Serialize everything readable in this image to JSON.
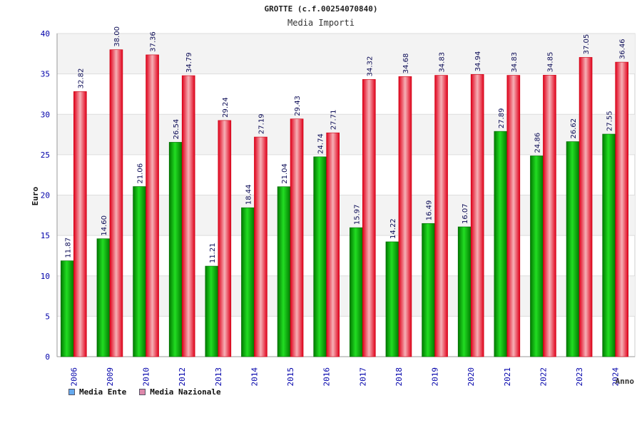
{
  "chart_data": {
    "type": "bar",
    "title": "GROTTE (c.f.00254070840)",
    "subtitle": "Media Importi",
    "xlabel": "Anno",
    "ylabel": "Euro",
    "ylim": [
      0,
      40
    ],
    "yticks": [
      0,
      5,
      10,
      15,
      20,
      25,
      30,
      35,
      40
    ],
    "categories": [
      "2006",
      "2009",
      "2010",
      "2012",
      "2013",
      "2014",
      "2015",
      "2016",
      "2017",
      "2018",
      "2019",
      "2020",
      "2021",
      "2022",
      "2023",
      "2024"
    ],
    "series": [
      {
        "name": "Media Ente",
        "color": "#00aa00",
        "legend_color": "#66aaee",
        "values": [
          11.87,
          14.6,
          21.06,
          26.54,
          11.21,
          18.44,
          21.04,
          24.74,
          15.97,
          14.22,
          16.49,
          16.07,
          27.89,
          24.86,
          26.62,
          27.55
        ],
        "labels": [
          "11.87",
          "14.60",
          "21.06",
          "26.54",
          "11.21",
          "18.44",
          "21.04",
          "24.74",
          "15.97",
          "14.22",
          "16.49",
          "16.07",
          "27.89",
          "24.86",
          "26.62",
          "27.55"
        ]
      },
      {
        "name": "Media Nazionale",
        "color": "#ee1122",
        "legend_color": "#dd88aa",
        "values": [
          32.82,
          38.0,
          37.36,
          34.79,
          29.24,
          27.19,
          29.43,
          27.71,
          34.32,
          34.68,
          34.83,
          34.94,
          34.83,
          34.85,
          37.05,
          36.46
        ],
        "labels": [
          "32.82",
          "38.00",
          "37.36",
          "34.79",
          "29.24",
          "27.19",
          "29.43",
          "27.71",
          "34.32",
          "34.68",
          "34.83",
          "34.94",
          "34.83",
          "34.85",
          "37.05",
          "36.46"
        ]
      }
    ],
    "legend_position": "bottom-left",
    "grid": true
  }
}
